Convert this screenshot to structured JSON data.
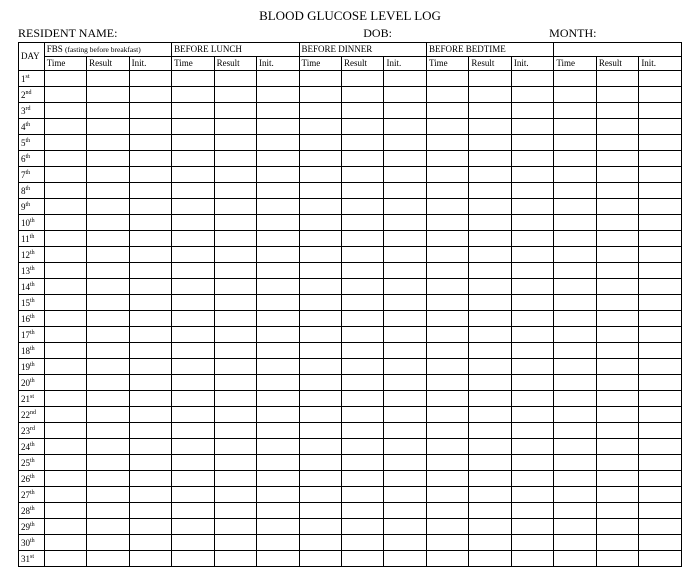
{
  "title": "BLOOD GLUCOSE LEVEL LOG",
  "info": {
    "resident_label": "RESIDENT NAME:",
    "dob_label": "DOB:",
    "month_label": "MONTH:"
  },
  "table": {
    "day_header": "DAY",
    "sections": [
      {
        "label": "FBS",
        "note": "(fasting before breakfast)"
      },
      {
        "label": "BEFORE LUNCH",
        "note": ""
      },
      {
        "label": "BEFORE DINNER",
        "note": ""
      },
      {
        "label": "BEFORE BEDTIME",
        "note": ""
      },
      {
        "label": "",
        "note": ""
      }
    ],
    "subheaders": [
      "Time",
      "Result",
      "Init."
    ],
    "days": [
      {
        "num": "1",
        "suf": "st"
      },
      {
        "num": "2",
        "suf": "nd"
      },
      {
        "num": "3",
        "suf": "rd"
      },
      {
        "num": "4",
        "suf": "th"
      },
      {
        "num": "5",
        "suf": "th"
      },
      {
        "num": "6",
        "suf": "th"
      },
      {
        "num": "7",
        "suf": "th"
      },
      {
        "num": "8",
        "suf": "th"
      },
      {
        "num": "9",
        "suf": "th"
      },
      {
        "num": "10",
        "suf": "th"
      },
      {
        "num": "11",
        "suf": "th"
      },
      {
        "num": "12",
        "suf": "th"
      },
      {
        "num": "13",
        "suf": "th"
      },
      {
        "num": "14",
        "suf": "th"
      },
      {
        "num": "15",
        "suf": "th"
      },
      {
        "num": "16",
        "suf": "th"
      },
      {
        "num": "17",
        "suf": "th"
      },
      {
        "num": "18",
        "suf": "th"
      },
      {
        "num": "19",
        "suf": "th"
      },
      {
        "num": "20",
        "suf": "th"
      },
      {
        "num": "21",
        "suf": "st"
      },
      {
        "num": "22",
        "suf": "nd"
      },
      {
        "num": "23",
        "suf": "rd"
      },
      {
        "num": "24",
        "suf": "th"
      },
      {
        "num": "25",
        "suf": "th"
      },
      {
        "num": "26",
        "suf": "th"
      },
      {
        "num": "27",
        "suf": "th"
      },
      {
        "num": "28",
        "suf": "th"
      },
      {
        "num": "29",
        "suf": "th"
      },
      {
        "num": "30",
        "suf": "th"
      },
      {
        "num": "31",
        "suf": "st"
      }
    ]
  },
  "style": {
    "border_color": "#000000",
    "background_color": "#ffffff",
    "font_family": "Times New Roman",
    "title_fontsize": 13,
    "info_fontsize": 12,
    "cell_fontsize": 9,
    "note_fontsize": 7.5,
    "row_height": 13.5,
    "day_col_width": 24,
    "data_col_width": 39.7
  }
}
